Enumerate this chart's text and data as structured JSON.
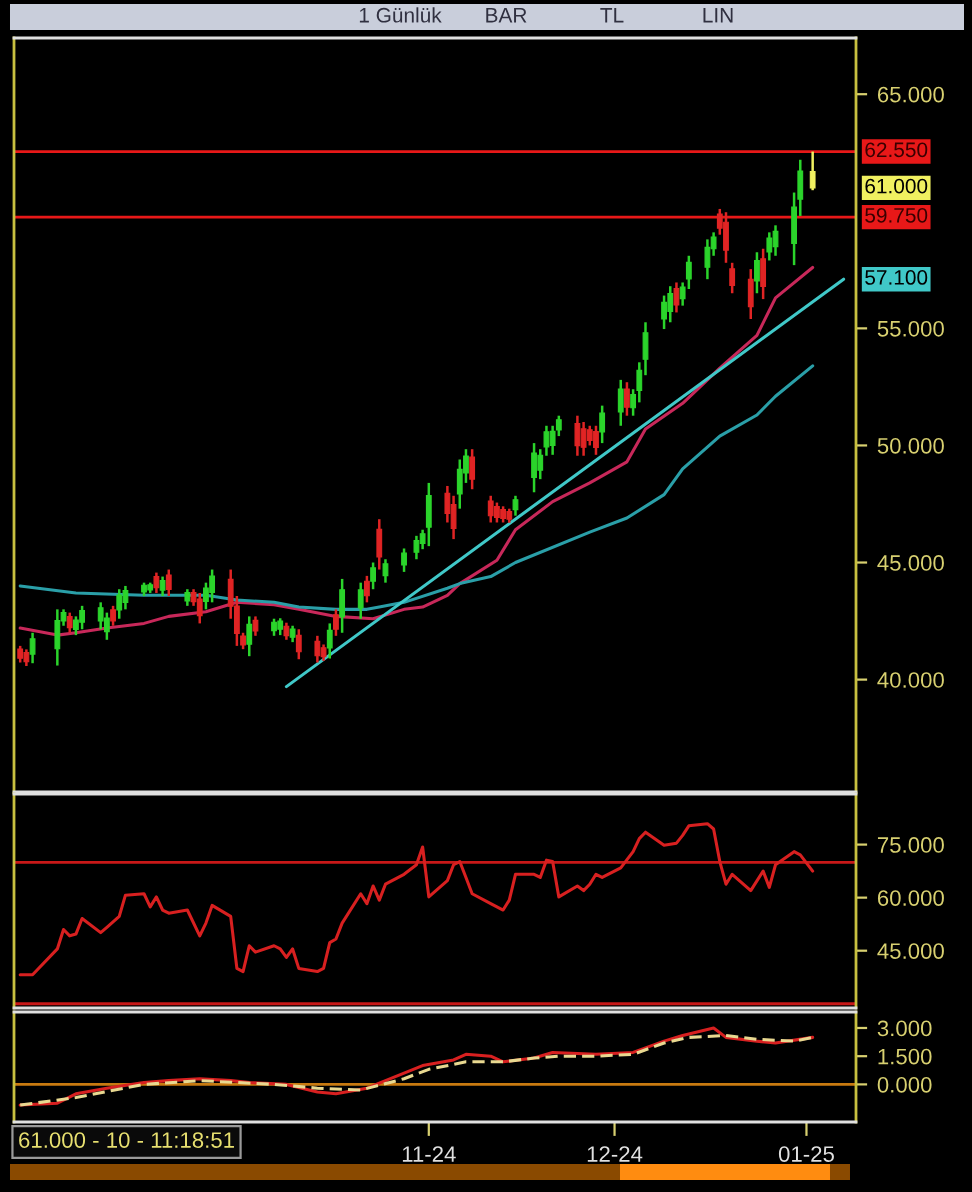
{
  "chart_data": [
    {
      "type": "candlestick",
      "x": [
        "2024-08-27",
        "2024-08-28",
        "2024-08-29",
        "2024-09-02",
        "2024-09-03",
        "2024-09-04",
        "2024-09-05",
        "2024-09-06",
        "2024-09-09",
        "2024-09-10",
        "2024-09-11",
        "2024-09-12",
        "2024-09-13",
        "2024-09-16",
        "2024-09-17",
        "2024-09-18",
        "2024-09-19",
        "2024-09-20",
        "2024-09-23",
        "2024-09-24",
        "2024-09-25",
        "2024-09-26",
        "2024-09-27",
        "2024-09-30",
        "2024-10-01",
        "2024-10-02",
        "2024-10-03",
        "2024-10-04",
        "2024-10-07",
        "2024-10-08",
        "2024-10-09",
        "2024-10-10",
        "2024-10-11",
        "2024-10-14",
        "2024-10-15",
        "2024-10-16",
        "2024-10-17",
        "2024-10-18",
        "2024-10-21",
        "2024-10-22",
        "2024-10-23",
        "2024-10-24",
        "2024-10-25",
        "2024-10-28",
        "2024-10-30",
        "2024-10-31",
        "2024-11-01",
        "2024-11-04",
        "2024-11-05",
        "2024-11-06",
        "2024-11-07",
        "2024-11-08",
        "2024-11-11",
        "2024-11-12",
        "2024-11-13",
        "2024-11-14",
        "2024-11-15",
        "2024-11-18",
        "2024-11-19",
        "2024-11-20",
        "2024-11-21",
        "2024-11-22",
        "2024-11-25",
        "2024-11-26",
        "2024-11-27",
        "2024-11-28",
        "2024-11-29",
        "2024-12-02",
        "2024-12-03",
        "2024-12-04",
        "2024-12-05",
        "2024-12-06",
        "2024-12-09",
        "2024-12-10",
        "2024-12-11",
        "2024-12-12",
        "2024-12-13",
        "2024-12-16",
        "2024-12-17",
        "2024-12-18",
        "2024-12-19",
        "2024-12-20",
        "2024-12-23",
        "2024-12-24",
        "2024-12-25",
        "2024-12-26",
        "2024-12-27",
        "2024-12-30",
        "2024-12-31",
        "2025-01-02"
      ],
      "ohlc": [
        [
          41.3,
          41.44,
          40.73,
          40.91
        ],
        [
          41.15,
          41.29,
          40.58,
          40.76
        ],
        [
          41.09,
          42.0,
          40.7,
          41.74
        ],
        [
          41.32,
          43.0,
          40.6,
          42.52
        ],
        [
          42.51,
          43.0,
          42.3,
          42.86
        ],
        [
          42.69,
          42.86,
          42.0,
          42.22
        ],
        [
          42.14,
          42.7,
          41.9,
          42.54
        ],
        [
          42.45,
          43.15,
          42.15,
          42.95
        ],
        [
          42.5,
          43.3,
          42.15,
          43.07
        ],
        [
          42.05,
          42.86,
          41.7,
          42.63
        ],
        [
          42.98,
          43.15,
          42.3,
          42.51
        ],
        [
          42.98,
          43.86,
          42.6,
          43.61
        ],
        [
          43.3,
          44.0,
          43.0,
          43.8
        ],
        [
          43.74,
          44.14,
          43.57,
          44.03
        ],
        [
          43.83,
          44.14,
          43.7,
          44.05
        ],
        [
          44.4,
          44.57,
          43.7,
          43.92
        ],
        [
          43.82,
          44.4,
          43.57,
          44.23
        ],
        [
          44.47,
          44.7,
          43.57,
          43.85
        ],
        [
          43.36,
          43.86,
          43.15,
          43.72
        ],
        [
          43.72,
          43.86,
          43.15,
          43.33
        ],
        [
          43.44,
          43.7,
          42.4,
          42.73
        ],
        [
          43.34,
          44.14,
          43.0,
          43.91
        ],
        [
          43.72,
          44.7,
          43.3,
          44.42
        ],
        [
          44.28,
          44.7,
          42.6,
          43.13
        ],
        [
          43.14,
          43.57,
          41.44,
          41.97
        ],
        [
          41.86,
          42.0,
          41.3,
          41.48
        ],
        [
          41.51,
          42.7,
          41.0,
          42.36
        ],
        [
          42.53,
          42.7,
          41.87,
          42.08
        ],
        [
          42.09,
          42.6,
          41.87,
          42.45
        ],
        [
          42.15,
          42.62,
          41.9,
          42.5
        ],
        [
          42.28,
          42.43,
          41.7,
          41.88
        ],
        [
          41.81,
          42.3,
          41.6,
          42.16
        ],
        [
          41.89,
          42.15,
          40.87,
          41.19
        ],
        [
          41.64,
          41.87,
          40.73,
          41.02
        ],
        [
          41.36,
          41.5,
          40.8,
          40.98
        ],
        [
          41.35,
          42.4,
          40.9,
          42.1
        ],
        [
          42.77,
          43.0,
          41.87,
          42.15
        ],
        [
          42.69,
          44.3,
          42.0,
          43.84
        ],
        [
          43.06,
          44.14,
          42.6,
          43.83
        ],
        [
          44.2,
          44.43,
          43.3,
          43.58
        ],
        [
          44.2,
          45.0,
          43.86,
          44.77
        ],
        [
          46.42,
          46.85,
          44.7,
          45.24
        ],
        [
          44.44,
          45.14,
          44.14,
          44.94
        ],
        [
          44.9,
          45.6,
          44.6,
          45.4
        ],
        [
          45.44,
          46.14,
          45.14,
          45.94
        ],
        [
          45.82,
          46.4,
          45.57,
          46.23
        ],
        [
          46.51,
          48.4,
          45.7,
          47.86
        ],
        [
          47.96,
          48.27,
          46.71,
          47.1
        ],
        [
          47.48,
          47.85,
          46.0,
          46.46
        ],
        [
          47.93,
          49.4,
          47.3,
          48.98
        ],
        [
          48.83,
          49.84,
          48.4,
          49.55
        ],
        [
          49.5,
          49.84,
          48.13,
          48.56
        ],
        [
          47.62,
          47.85,
          46.71,
          47.0
        ],
        [
          47.39,
          47.56,
          46.71,
          46.92
        ],
        [
          47.26,
          47.4,
          46.71,
          46.88
        ],
        [
          47.18,
          47.3,
          46.7,
          46.85
        ],
        [
          47.26,
          47.85,
          47.0,
          47.68
        ],
        [
          48.63,
          50.1,
          48.0,
          49.68
        ],
        [
          48.94,
          49.84,
          48.56,
          49.58
        ],
        [
          49.94,
          50.84,
          49.56,
          50.58
        ],
        [
          50.0,
          50.84,
          49.6,
          50.6
        ],
        [
          50.66,
          51.27,
          50.4,
          51.1
        ],
        [
          50.93,
          51.27,
          49.56,
          49.99
        ],
        [
          50.71,
          51.0,
          49.56,
          49.92
        ],
        [
          50.67,
          50.84,
          50.0,
          50.21
        ],
        [
          50.59,
          50.84,
          49.6,
          49.91
        ],
        [
          50.58,
          51.7,
          50.1,
          51.38
        ],
        [
          51.43,
          52.8,
          50.84,
          52.41
        ],
        [
          52.41,
          52.7,
          51.27,
          51.63
        ],
        [
          51.61,
          52.4,
          51.27,
          52.17
        ],
        [
          52.35,
          53.55,
          51.84,
          53.21
        ],
        [
          53.68,
          55.26,
          53.0,
          54.81
        ],
        [
          55.4,
          56.4,
          54.97,
          56.11
        ],
        [
          55.72,
          56.8,
          55.26,
          56.49
        ],
        [
          56.7,
          56.96,
          55.68,
          56.0
        ],
        [
          56.27,
          56.96,
          55.97,
          56.76
        ],
        [
          57.11,
          58.1,
          56.68,
          57.82
        ],
        [
          57.61,
          58.8,
          57.1,
          58.46
        ],
        [
          58.4,
          59.1,
          58.1,
          58.9
        ],
        [
          59.88,
          60.1,
          59.0,
          59.28
        ],
        [
          59.53,
          59.96,
          57.8,
          58.34
        ],
        [
          57.54,
          57.8,
          56.5,
          56.83
        ],
        [
          57.1,
          57.53,
          55.4,
          55.93
        ],
        [
          57.03,
          58.25,
          56.5,
          57.9
        ],
        [
          57.97,
          58.4,
          56.25,
          56.79
        ],
        [
          58.26,
          59.1,
          57.9,
          58.86
        ],
        [
          58.49,
          59.4,
          58.1,
          59.14
        ],
        [
          58.63,
          60.8,
          57.7,
          60.18
        ],
        [
          60.52,
          62.2,
          59.8,
          61.72
        ],
        [
          61.7,
          62.55,
          60.9,
          61.0
        ]
      ],
      "colors": [
        "#e02424",
        "#e02424",
        "#2bd42b",
        "#2bd42b",
        "#2bd42b",
        "#e02424",
        "#2bd42b",
        "#2bd42b",
        "#2bd42b",
        "#2bd42b",
        "#e02424",
        "#2bd42b",
        "#2bd42b",
        "#2bd42b",
        "#2bd42b",
        "#e02424",
        "#2bd42b",
        "#e02424",
        "#2bd42b",
        "#e02424",
        "#e02424",
        "#2bd42b",
        "#2bd42b",
        "#e02424",
        "#e02424",
        "#e02424",
        "#2bd42b",
        "#e02424",
        "#2bd42b",
        "#2bd42b",
        "#e02424",
        "#2bd42b",
        "#e02424",
        "#e02424",
        "#e02424",
        "#2bd42b",
        "#e02424",
        "#2bd42b",
        "#2bd42b",
        "#e02424",
        "#2bd42b",
        "#e02424",
        "#2bd42b",
        "#2bd42b",
        "#2bd42b",
        "#2bd42b",
        "#2bd42b",
        "#e02424",
        "#e02424",
        "#2bd42b",
        "#2bd42b",
        "#e02424",
        "#e02424",
        "#e02424",
        "#e02424",
        "#e02424",
        "#2bd42b",
        "#2bd42b",
        "#2bd42b",
        "#2bd42b",
        "#2bd42b",
        "#2bd42b",
        "#e02424",
        "#e02424",
        "#e02424",
        "#e02424",
        "#2bd42b",
        "#2bd42b",
        "#e02424",
        "#2bd42b",
        "#2bd42b",
        "#2bd42b",
        "#2bd42b",
        "#2bd42b",
        "#e02424",
        "#2bd42b",
        "#2bd42b",
        "#2bd42b",
        "#2bd42b",
        "#e02424",
        "#e02424",
        "#e02424",
        "#e02424",
        "#2bd42b",
        "#e02424",
        "#2bd42b",
        "#2bd42b",
        "#2bd42b",
        "#2bd42b",
        "#f0f060"
      ],
      "series": [
        {
          "type": "line",
          "color": "#c8285a",
          "x": [
            "2024-08-27",
            "2024-09-02",
            "2024-09-05",
            "2024-09-10",
            "2024-09-16",
            "2024-09-20",
            "2024-09-26",
            "2024-10-01",
            "2024-10-07",
            "2024-10-11",
            "2024-10-17",
            "2024-10-23",
            "2024-10-28",
            "2024-10-31",
            "2024-11-04",
            "2024-11-06",
            "2024-11-12",
            "2024-11-15",
            "2024-11-21",
            "2024-11-27",
            "2024-12-03",
            "2024-12-06",
            "2024-12-12",
            "2024-12-18",
            "2024-12-24",
            "2024-12-27",
            "2025-01-02"
          ],
          "values": [
            42.2,
            41.9,
            42.0,
            42.2,
            42.4,
            42.7,
            42.9,
            43.3,
            43.2,
            43.0,
            42.7,
            42.6,
            43.0,
            43.1,
            43.6,
            44.1,
            45.1,
            46.4,
            47.6,
            48.4,
            49.3,
            50.7,
            51.8,
            53.3,
            54.7,
            56.3,
            57.6
          ]
        },
        {
          "type": "line",
          "color": "#2a9fa8",
          "x": [
            "2024-08-27",
            "2024-09-05",
            "2024-09-16",
            "2024-09-26",
            "2024-10-01",
            "2024-10-07",
            "2024-10-11",
            "2024-10-17",
            "2024-10-22",
            "2024-10-24",
            "2024-10-28",
            "2024-11-04",
            "2024-11-06",
            "2024-11-11",
            "2024-11-15",
            "2024-11-27",
            "2024-12-03",
            "2024-12-09",
            "2024-12-12",
            "2024-12-18",
            "2024-12-24",
            "2024-12-27",
            "2025-01-02"
          ],
          "values": [
            44.0,
            43.7,
            43.6,
            43.6,
            43.4,
            43.3,
            43.1,
            43.0,
            43.0,
            43.1,
            43.3,
            43.9,
            44.1,
            44.4,
            45.0,
            46.3,
            46.9,
            47.9,
            49.0,
            50.4,
            51.3,
            52.1,
            53.4
          ]
        },
        {
          "type": "line",
          "color": "#40c8c8",
          "x": [
            "2024-10-09",
            "2025-01-07"
          ],
          "values": [
            39.7,
            57.1
          ]
        }
      ],
      "xlim": [
        "2024-08-26",
        "2025-01-09"
      ],
      "ylim": [
        35.2,
        67.4
      ],
      "yticks": [
        {
          "value": 40,
          "label": "40.000"
        },
        {
          "value": 45,
          "label": "45.000"
        },
        {
          "value": 50,
          "label": "50.000"
        },
        {
          "value": 55,
          "label": "55.000"
        },
        {
          "value": 65,
          "label": "65.000"
        }
      ],
      "tick_labels": "y",
      "ref_lines": [
        {
          "axis": "y",
          "value": 62.55,
          "label": "62.550",
          "color": "#e81818"
        },
        {
          "axis": "y",
          "value": 59.75,
          "label": "59.750",
          "color": "#e81818"
        }
      ],
      "annotations": [
        {
          "text": "61.000",
          "x": "2025-01-02",
          "y": 61.0
        },
        {
          "text": "57.100",
          "x": "2025-01-07",
          "y": 57.1
        },
        "1 Günlük",
        "BAR",
        "TL",
        "LIN"
      ]
    },
    {
      "type": "line",
      "series": [
        {
          "color": "#d82020",
          "x": [
            "2024-08-27",
            "2024-08-29",
            "2024-09-02",
            "2024-09-03",
            "2024-09-04",
            "2024-09-05",
            "2024-09-06",
            "2024-09-09",
            "2024-09-10",
            "2024-09-12",
            "2024-09-13",
            "2024-09-16",
            "2024-09-17",
            "2024-09-18",
            "2024-09-19",
            "2024-09-20",
            "2024-09-23",
            "2024-09-25",
            "2024-09-26",
            "2024-09-27",
            "2024-09-30",
            "2024-10-01",
            "2024-10-02",
            "2024-10-03",
            "2024-10-04",
            "2024-10-07",
            "2024-10-08",
            "2024-10-09",
            "2024-10-10",
            "2024-10-11",
            "2024-10-14",
            "2024-10-15",
            "2024-10-16",
            "2024-10-17",
            "2024-10-18",
            "2024-10-21",
            "2024-10-22",
            "2024-10-23",
            "2024-10-24",
            "2024-10-25",
            "2024-10-28",
            "2024-10-30",
            "2024-10-31",
            "2024-11-01",
            "2024-11-04",
            "2024-11-05",
            "2024-11-06",
            "2024-11-07",
            "2024-11-08",
            "2024-11-11",
            "2024-11-13",
            "2024-11-14",
            "2024-11-15",
            "2024-11-18",
            "2024-11-19",
            "2024-11-20",
            "2024-11-21",
            "2024-11-22",
            "2024-11-25",
            "2024-11-26",
            "2024-11-27",
            "2024-11-28",
            "2024-11-29",
            "2024-12-02",
            "2024-12-04",
            "2024-12-05",
            "2024-12-06",
            "2024-12-09",
            "2024-12-11",
            "2024-12-12",
            "2024-12-13",
            "2024-12-16",
            "2024-12-17",
            "2024-12-18",
            "2024-12-19",
            "2024-12-20",
            "2024-12-23",
            "2024-12-25",
            "2024-12-26",
            "2024-12-27",
            "2024-12-30",
            "2024-12-31",
            "2025-01-02"
          ],
          "values": [
            38.2,
            38.2,
            45.5,
            51.0,
            49.2,
            49.7,
            54.1,
            50.1,
            51.6,
            54.7,
            60.7,
            61.1,
            57.4,
            60.2,
            56.5,
            55.6,
            56.5,
            49.2,
            52.8,
            57.8,
            54.7,
            40.0,
            39.1,
            46.4,
            44.6,
            46.4,
            45.5,
            43.1,
            45.5,
            40.0,
            39.1,
            40.0,
            47.3,
            48.3,
            52.8,
            61.1,
            58.3,
            63.3,
            59.3,
            63.8,
            66.6,
            69.3,
            74.3,
            60.2,
            64.8,
            69.3,
            70.2,
            65.7,
            61.1,
            58.3,
            56.5,
            59.3,
            66.6,
            66.6,
            65.7,
            70.6,
            70.2,
            60.2,
            63.3,
            62.0,
            63.8,
            66.6,
            65.7,
            68.4,
            73.0,
            76.7,
            78.5,
            74.8,
            75.4,
            77.6,
            80.3,
            80.9,
            79.4,
            70.2,
            63.8,
            66.6,
            62.0,
            67.5,
            62.9,
            69.3,
            73.0,
            72.1,
            67.5
          ]
        }
      ],
      "xlim": [
        "2024-08-26",
        "2025-01-09"
      ],
      "ylim": [
        28.8,
        89.3
      ],
      "yticks": [
        {
          "value": 45,
          "label": "45.000"
        },
        {
          "value": 60,
          "label": "60.000"
        },
        {
          "value": 75,
          "label": "75.000"
        }
      ],
      "tick_labels": "y",
      "ref_lines": [
        {
          "axis": "y",
          "value": 70,
          "color": "#c81818"
        },
        {
          "axis": "y",
          "value": 30,
          "color": "#c81818"
        }
      ]
    },
    {
      "type": "line",
      "series": [
        {
          "color": "#d82020",
          "x": [
            "2024-08-27",
            "2024-09-02",
            "2024-09-05",
            "2024-09-10",
            "2024-09-16",
            "2024-09-20",
            "2024-09-25",
            "2024-09-30",
            "2024-10-03",
            "2024-10-09",
            "2024-10-14",
            "2024-10-17",
            "2024-10-22",
            "2024-10-25",
            "2024-10-31",
            "2024-11-05",
            "2024-11-07",
            "2024-11-11",
            "2024-11-13",
            "2024-11-18",
            "2024-11-21",
            "2024-11-28",
            "2024-12-04",
            "2024-12-09",
            "2024-12-12",
            "2024-12-17",
            "2024-12-19",
            "2024-12-24",
            "2024-12-27",
            "2025-01-02"
          ],
          "values": [
            -1.1,
            -1.0,
            -0.5,
            -0.2,
            0.1,
            0.2,
            0.3,
            0.2,
            0.1,
            0.0,
            -0.4,
            -0.5,
            -0.2,
            0.2,
            1.0,
            1.3,
            1.6,
            1.5,
            1.2,
            1.4,
            1.7,
            1.6,
            1.7,
            2.3,
            2.6,
            3.0,
            2.5,
            2.3,
            2.2,
            2.5
          ]
        },
        {
          "color": "#e8d890",
          "line_style": "dashed",
          "x": [
            "2024-08-27",
            "2024-09-05",
            "2024-09-16",
            "2024-09-25",
            "2024-10-07",
            "2024-10-14",
            "2024-10-21",
            "2024-10-28",
            "2024-11-01",
            "2024-11-07",
            "2024-11-13",
            "2024-11-18",
            "2024-11-22",
            "2024-11-28",
            "2024-12-04",
            "2024-12-09",
            "2024-12-13",
            "2024-12-19",
            "2024-12-24",
            "2024-12-30",
            "2025-01-02"
          ],
          "values": [
            -1.1,
            -0.7,
            0.0,
            0.2,
            0.0,
            -0.2,
            -0.3,
            0.3,
            0.8,
            1.2,
            1.2,
            1.4,
            1.5,
            1.5,
            1.6,
            2.2,
            2.5,
            2.6,
            2.4,
            2.3,
            2.5
          ]
        }
      ],
      "xlim": [
        "2024-08-26",
        "2025-01-09"
      ],
      "ylim": [
        -2.0,
        3.85
      ],
      "xticks": [
        {
          "value": "2024-11-01",
          "label": "11-24"
        },
        {
          "value": "2024-12-01",
          "label": "12-24"
        },
        {
          "value": "2025-01-01",
          "label": "01-25"
        }
      ],
      "yticks": [
        {
          "value": 0,
          "label": "0.000"
        },
        {
          "value": 1.5,
          "label": "1.500"
        },
        {
          "value": 3,
          "label": "3.000"
        }
      ],
      "ref_lines": [
        {
          "axis": "y",
          "value": 0,
          "color": "#c87a10"
        }
      ],
      "annotations": [
        "61.000 - 10 - 11:18:51"
      ]
    }
  ]
}
